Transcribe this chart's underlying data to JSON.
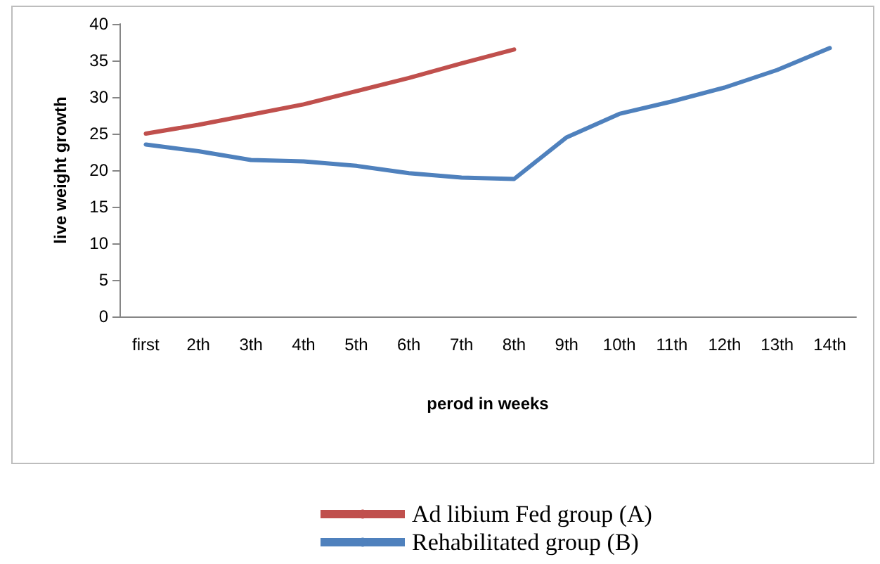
{
  "chart_data": {
    "type": "line",
    "xlabel": "perod in weeks",
    "ylabel": "live weight growth",
    "categories": [
      "first",
      "2th",
      "3th",
      "4th",
      "5th",
      "6th",
      "7th",
      "8th",
      "9th",
      "10th",
      "11th",
      "12th",
      "13th",
      "14th"
    ],
    "series": [
      {
        "name": "Ad libium Fed group (A)",
        "color": "#c0504d",
        "values": [
          25,
          26.2,
          27.6,
          29,
          30.8,
          32.6,
          34.6,
          36.5,
          null,
          null,
          null,
          null,
          null,
          null
        ]
      },
      {
        "name": "Rehabilitated group (B)",
        "color": "#4f81bd",
        "values": [
          23.5,
          22.6,
          21.4,
          21.2,
          20.6,
          19.6,
          19,
          18.8,
          24.5,
          27.7,
          29.4,
          31.3,
          33.7,
          36.7
        ]
      }
    ],
    "ylim": [
      0,
      40
    ],
    "yticks": [
      0,
      5,
      10,
      15,
      20,
      25,
      30,
      35,
      40
    ],
    "grid": false,
    "legend": "bottom",
    "marker": "none",
    "line_style": "solid"
  }
}
